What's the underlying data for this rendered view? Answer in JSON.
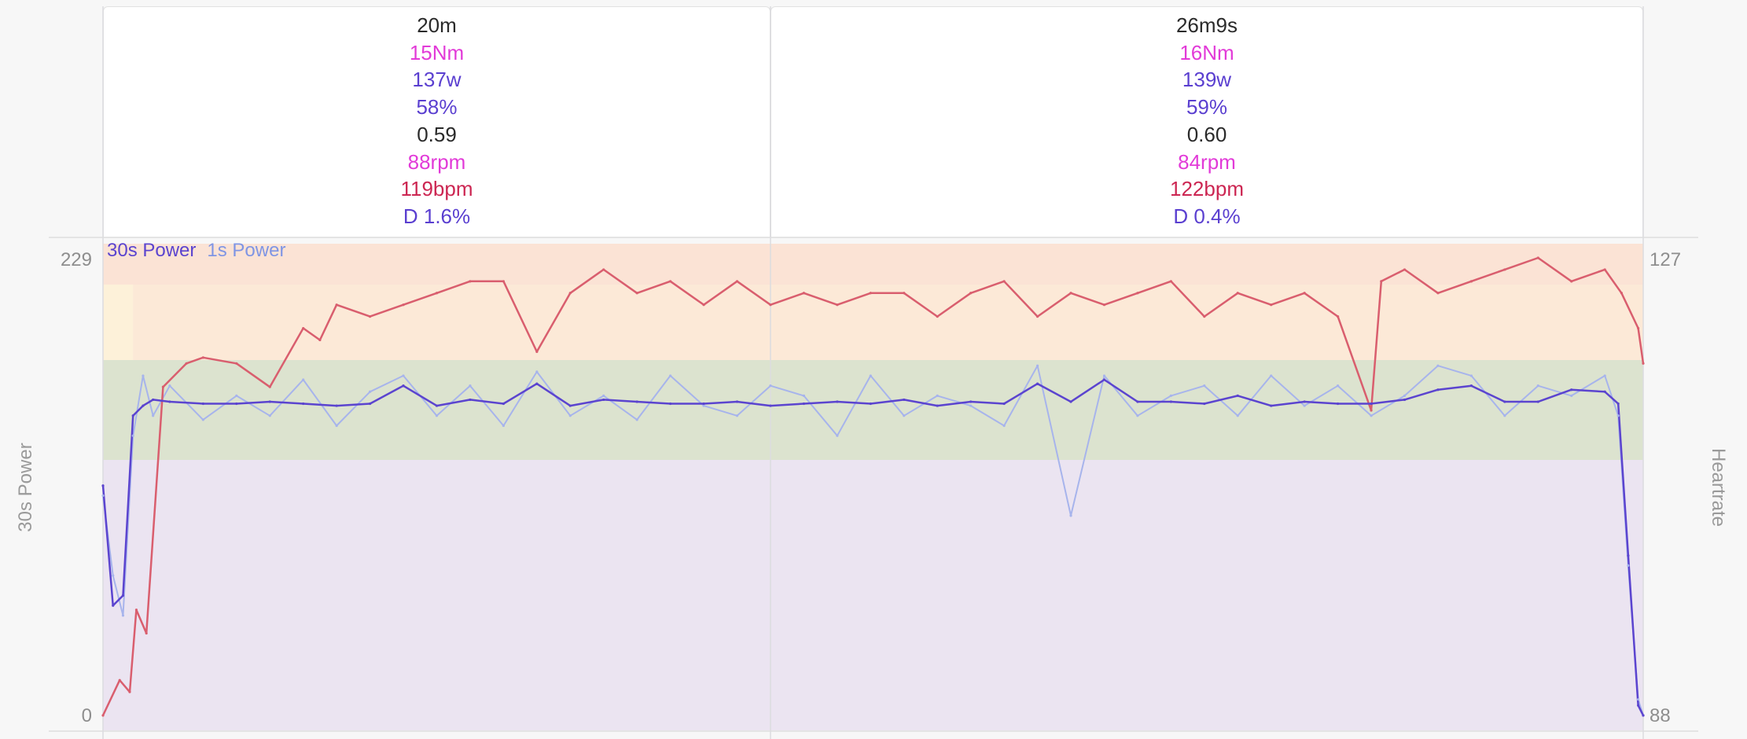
{
  "intervals": [
    {
      "time": "20m",
      "torque": "15Nm",
      "power": "137w",
      "power_pct": "58%",
      "intensity": "0.59",
      "cadence": "88rpm",
      "heartrate": "119bpm",
      "decoupling": "D 1.6%"
    },
    {
      "time": "26m9s",
      "torque": "16Nm",
      "power": "139w",
      "power_pct": "59%",
      "intensity": "0.60",
      "cadence": "84rpm",
      "heartrate": "122bpm",
      "decoupling": "D 0.4%"
    }
  ],
  "colors": {
    "power30": "#5b44cf",
    "power1": "#a7b4ec",
    "heartrate": "#d95e6e",
    "zone_top": "#fbe3d5",
    "zone_yellow": "#fdf1d9",
    "zone_orange": "#fbe6d6",
    "zone_green": "#dce3cf",
    "zone_low": "#ebe4f1"
  },
  "chart_data": {
    "type": "line",
    "x_unit": "minutes",
    "x_range": [
      0,
      46.15
    ],
    "interval_boundaries": [
      0,
      20,
      46.15
    ],
    "legend": [
      "30s Power",
      "1s Power"
    ],
    "y_left": {
      "label": "30s Power",
      "range": [
        0,
        229
      ],
      "ticks": [
        "229",
        "0"
      ]
    },
    "y_right": {
      "label": "Heartrate",
      "range": [
        88,
        127
      ],
      "ticks": [
        "127",
        "88"
      ]
    },
    "power_zones": [
      0,
      137,
      190,
      229
    ],
    "series": [
      {
        "name": "30s Power",
        "axis": "left",
        "x": [
          0,
          0.3,
          0.6,
          0.9,
          1.2,
          1.5,
          2,
          3,
          4,
          5,
          6,
          7,
          8,
          9,
          10,
          11,
          12,
          13,
          14,
          15,
          16,
          17,
          18,
          19,
          20,
          21,
          22,
          23,
          24,
          25,
          26,
          27,
          28,
          29,
          30,
          31,
          32,
          33,
          34,
          35,
          36,
          37,
          38,
          39,
          40,
          41,
          42,
          43,
          44,
          45,
          45.4,
          45.7,
          46,
          46.15
        ],
        "values": [
          115,
          55,
          60,
          150,
          155,
          158,
          157,
          156,
          156,
          157,
          156,
          155,
          156,
          165,
          155,
          158,
          156,
          166,
          155,
          158,
          157,
          156,
          156,
          157,
          155,
          156,
          157,
          156,
          158,
          155,
          157,
          156,
          166,
          157,
          168,
          157,
          157,
          156,
          160,
          155,
          157,
          156,
          156,
          158,
          163,
          165,
          157,
          157,
          163,
          162,
          156,
          80,
          5,
          0
        ]
      },
      {
        "name": "1s Power",
        "axis": "left",
        "x": [
          0,
          0.3,
          0.6,
          0.9,
          1.2,
          1.5,
          2,
          3,
          4,
          5,
          6,
          7,
          8,
          9,
          10,
          11,
          12,
          13,
          14,
          15,
          16,
          17,
          18,
          19,
          20,
          21,
          22,
          23,
          24,
          25,
          26,
          27,
          28,
          29,
          30,
          31,
          32,
          33,
          34,
          35,
          36,
          37,
          38,
          39,
          40,
          41,
          42,
          43,
          44,
          45,
          45.4,
          45.7,
          46,
          46.15
        ],
        "values": [
          110,
          70,
          50,
          140,
          170,
          150,
          165,
          148,
          160,
          150,
          168,
          145,
          162,
          170,
          150,
          165,
          145,
          172,
          150,
          160,
          148,
          170,
          155,
          150,
          165,
          160,
          140,
          170,
          150,
          160,
          155,
          145,
          175,
          100,
          170,
          150,
          160,
          165,
          150,
          170,
          155,
          165,
          150,
          160,
          175,
          170,
          150,
          165,
          160,
          170,
          150,
          75,
          8,
          0
        ]
      },
      {
        "name": "Heartrate",
        "axis": "right",
        "x": [
          0,
          0.5,
          0.8,
          1,
          1.3,
          1.8,
          2.5,
          3,
          4,
          5,
          6,
          6.5,
          7,
          8,
          9,
          10,
          11,
          12,
          13,
          14,
          15,
          16,
          17,
          18,
          19,
          20,
          21,
          22,
          23,
          24,
          25,
          26,
          27,
          28,
          29,
          30,
          31,
          32,
          33,
          34,
          35,
          36,
          37,
          38,
          38.3,
          39,
          40,
          41,
          42,
          43,
          44,
          45,
          45.5,
          46,
          46.15
        ],
        "values": [
          88,
          91,
          90,
          97,
          95,
          116,
          118,
          118.5,
          118,
          116,
          121,
          120,
          123,
          122,
          123,
          124,
          125,
          125,
          119,
          124,
          126,
          124,
          125,
          123,
          125,
          123,
          124,
          123,
          124,
          124,
          122,
          124,
          125,
          122,
          124,
          123,
          124,
          125,
          122,
          124,
          123,
          124,
          122,
          114,
          125,
          126,
          124,
          125,
          126,
          127,
          125,
          126,
          124,
          121,
          118
        ]
      }
    ]
  }
}
